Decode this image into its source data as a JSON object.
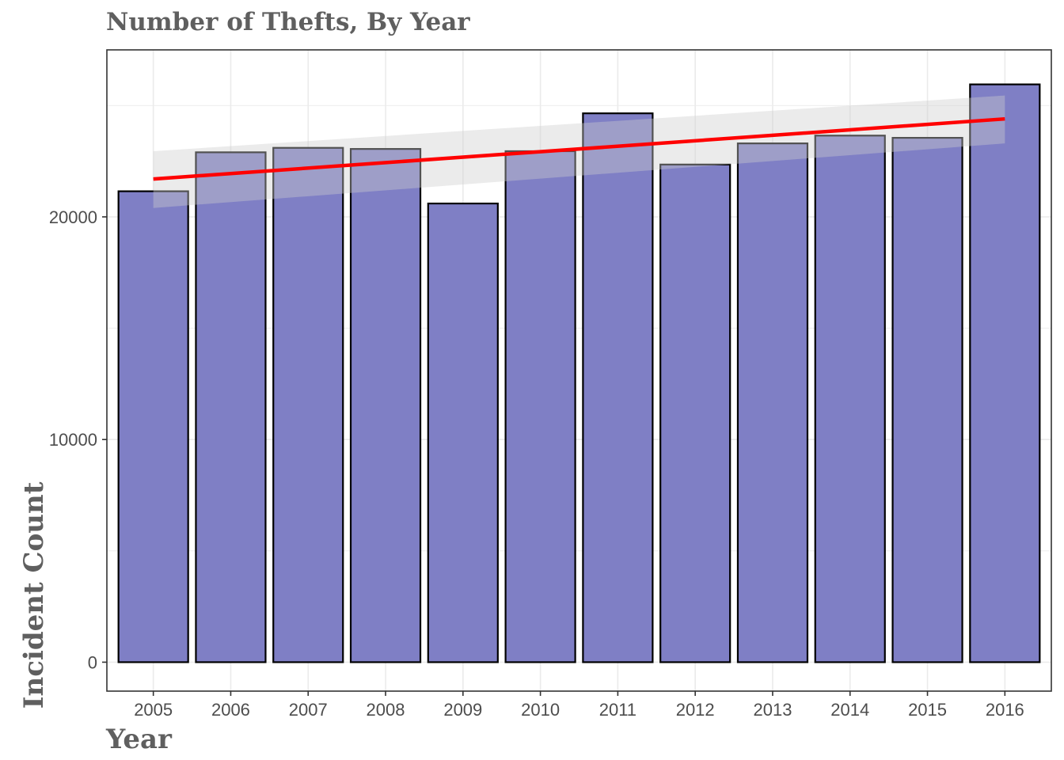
{
  "chart_data": {
    "type": "bar",
    "title": "Number of Thefts, By Year",
    "xlabel": "Year",
    "ylabel": "Incident Count",
    "categories": [
      "2005",
      "2006",
      "2007",
      "2008",
      "2009",
      "2010",
      "2011",
      "2012",
      "2013",
      "2014",
      "2015",
      "2016"
    ],
    "values": [
      21150,
      22900,
      23100,
      23050,
      20600,
      22950,
      24650,
      22350,
      23300,
      23650,
      23550,
      25950
    ],
    "ylim": [
      -1300,
      27500
    ],
    "yticks": [
      0,
      10000,
      20000
    ],
    "ytick_labels": [
      "0",
      "10000",
      "20000"
    ],
    "grid": true,
    "legend": "none",
    "trend": {
      "method": "linear",
      "x": [
        "2005",
        "2016"
      ],
      "y": [
        21700,
        24400
      ],
      "ci_lower": [
        20400,
        23300
      ],
      "ci_upper": [
        22950,
        25450
      ],
      "color": "#ff0000"
    },
    "bar_fill": "#7f7fc5",
    "bar_stroke": "#000000"
  }
}
